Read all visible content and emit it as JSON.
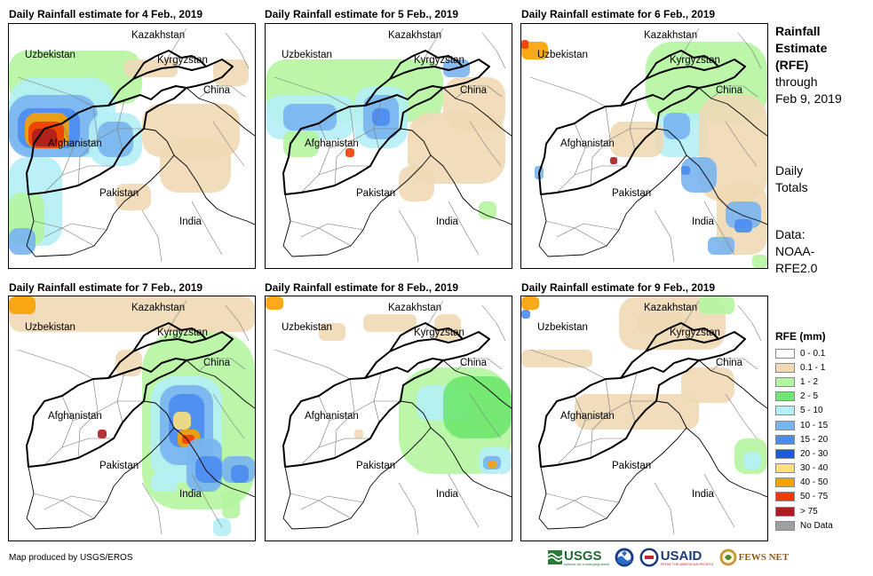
{
  "panels": [
    {
      "title": "Daily Rainfall estimate for 4 Feb., 2019"
    },
    {
      "title": "Daily Rainfall estimate for 5 Feb., 2019"
    },
    {
      "title": "Daily Rainfall estimate for 6 Feb., 2019"
    },
    {
      "title": "Daily Rainfall estimate for 7 Feb., 2019"
    },
    {
      "title": "Daily Rainfall estimate for 8 Feb., 2019"
    },
    {
      "title": "Daily Rainfall estimate for 9 Feb., 2019"
    }
  ],
  "country_labels": {
    "kazakhstan": "Kazakhstan",
    "uzbekistan": "Uzbekistan",
    "kyrgyzstan": "Kyrgyzstan",
    "china": "China",
    "afghanistan": "Afghanistan",
    "pakistan": "Pakistan",
    "india": "India"
  },
  "sidebar": {
    "heading_lines": [
      "Rainfall",
      "Estimate",
      "(RFE)"
    ],
    "through_lines": [
      "through",
      "Feb 9, 2019"
    ],
    "totals_lines": [
      "Daily",
      "Totals"
    ],
    "data_lines": [
      "Data:",
      "NOAA-",
      "RFE2.0"
    ]
  },
  "legend": {
    "title": "RFE (mm)",
    "items": [
      {
        "label": "0 - 0.1",
        "color": "#ffffff"
      },
      {
        "label": "0.1 - 1",
        "color": "#f0d9b5"
      },
      {
        "label": "1 - 2",
        "color": "#b4f5a0"
      },
      {
        "label": "2 - 5",
        "color": "#6ee86e"
      },
      {
        "label": "5 - 10",
        "color": "#b4f0f5"
      },
      {
        "label": "10 - 15",
        "color": "#78b4f0"
      },
      {
        "label": "15 - 20",
        "color": "#4b8cf0"
      },
      {
        "label": "20 - 30",
        "color": "#1e5adc"
      },
      {
        "label": "30 - 40",
        "color": "#fae178"
      },
      {
        "label": "40 - 50",
        "color": "#faa000"
      },
      {
        "label": "50 - 75",
        "color": "#f03c00"
      },
      {
        "label": "> 75",
        "color": "#aa1e1e"
      },
      {
        "label": "No Data",
        "color": "#a0a0a0"
      }
    ]
  },
  "credit": "Map produced by USGS/EROS",
  "logos": {
    "usgs": "USGS",
    "usgs_tagline": "science for a changing world",
    "usaid": "USAID",
    "usaid_tagline": "FROM THE AMERICAN PEOPLE",
    "fewsnet": "FEWS NET"
  }
}
